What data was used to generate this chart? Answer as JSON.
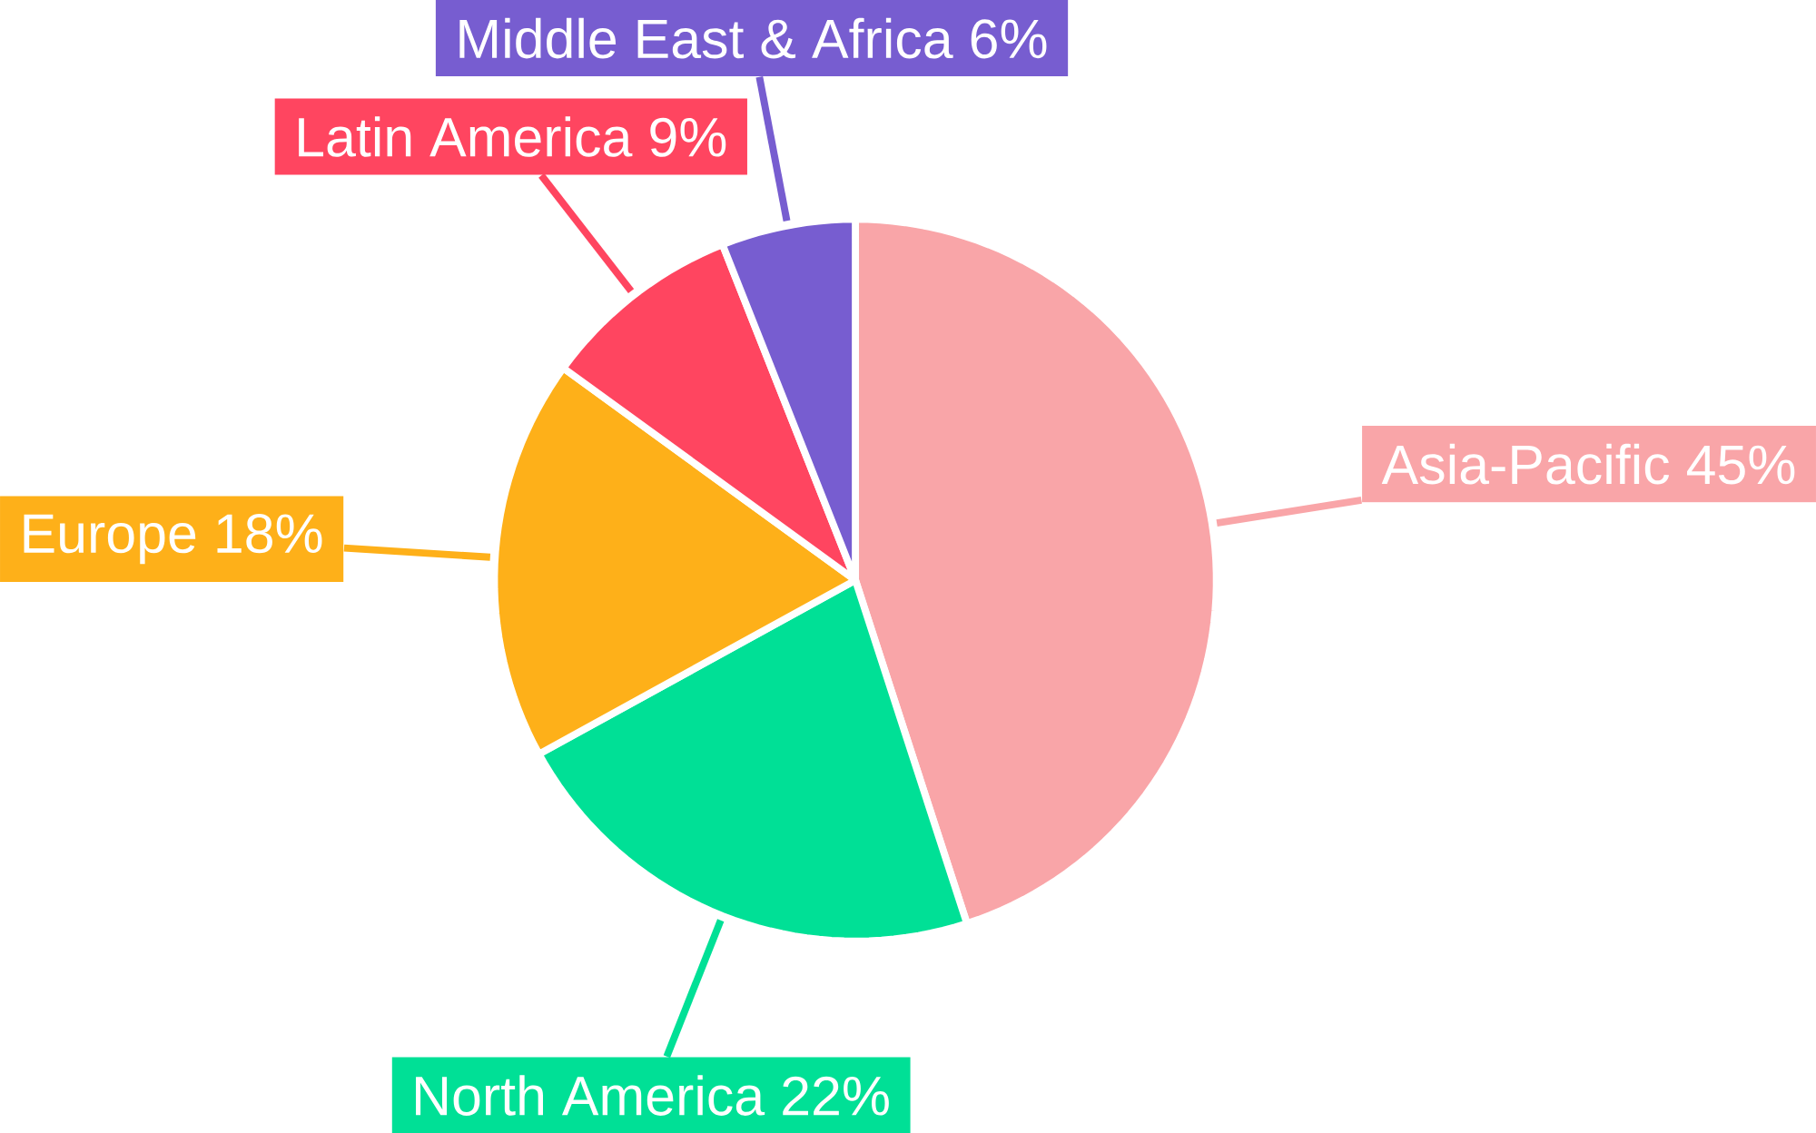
{
  "chart_data": {
    "type": "pie",
    "categories": [
      "Asia-Pacific",
      "North America",
      "Europe",
      "Latin America",
      "Middle East & Africa"
    ],
    "values": [
      45,
      22,
      18,
      9,
      6
    ],
    "value_labels": [
      "45%",
      "22%",
      "18%",
      "9%",
      "6%"
    ],
    "colors": [
      "#f9a5a8",
      "#00e096",
      "#feb019",
      "#ff4560",
      "#775dd0"
    ]
  }
}
